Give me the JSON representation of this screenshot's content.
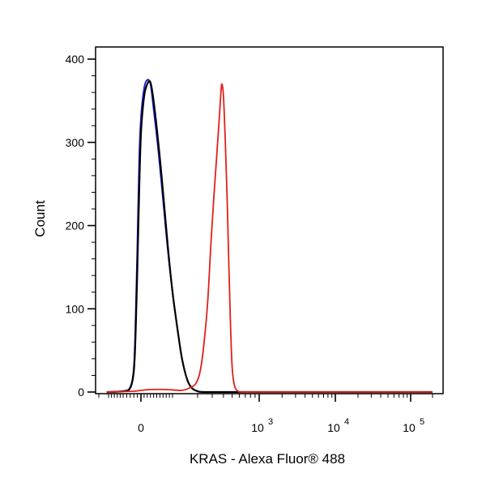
{
  "chart_data": {
    "type": "line",
    "title": "",
    "xlabel": "KRAS - Alexa Fluor® 488",
    "ylabel": "Count",
    "ylim": [
      0,
      400
    ],
    "yticks": [
      0,
      100,
      200,
      300,
      400
    ],
    "x_scale": "biexponential",
    "xticks": [
      {
        "value": 0,
        "base": "0",
        "exp": ""
      },
      {
        "value": 1000,
        "base": "10",
        "exp": "3"
      },
      {
        "value": 10000,
        "base": "10",
        "exp": "4"
      },
      {
        "value": 100000,
        "base": "10",
        "exp": "5"
      }
    ],
    "grid": false,
    "legend": "none",
    "series": [
      {
        "color": "#1a1adb",
        "points": [
          [
            -120,
            0
          ],
          [
            -50,
            1
          ],
          [
            -30,
            6
          ],
          [
            -20,
            30
          ],
          [
            -15,
            90
          ],
          [
            -10,
            180
          ],
          [
            -5,
            280
          ],
          [
            0,
            330
          ],
          [
            10,
            365
          ],
          [
            20,
            375
          ],
          [
            30,
            370
          ],
          [
            40,
            340
          ],
          [
            55,
            290
          ],
          [
            70,
            230
          ],
          [
            85,
            170
          ],
          [
            100,
            120
          ],
          [
            115,
            75
          ],
          [
            130,
            40
          ],
          [
            150,
            15
          ],
          [
            170,
            5
          ],
          [
            200,
            1
          ],
          [
            260,
            0
          ],
          [
            1000,
            0
          ],
          [
            10000,
            0
          ],
          [
            100000,
            0
          ],
          [
            200000,
            0
          ]
        ]
      },
      {
        "color": "#000000",
        "points": [
          [
            -120,
            0
          ],
          [
            -50,
            1
          ],
          [
            -30,
            5
          ],
          [
            -20,
            25
          ],
          [
            -15,
            70
          ],
          [
            -10,
            150
          ],
          [
            -5,
            240
          ],
          [
            0,
            310
          ],
          [
            10,
            355
          ],
          [
            20,
            370
          ],
          [
            30,
            372
          ],
          [
            40,
            350
          ],
          [
            55,
            300
          ],
          [
            70,
            240
          ],
          [
            85,
            175
          ],
          [
            100,
            120
          ],
          [
            115,
            75
          ],
          [
            130,
            40
          ],
          [
            150,
            15
          ],
          [
            170,
            5
          ],
          [
            200,
            1
          ],
          [
            260,
            0
          ],
          [
            1000,
            0
          ],
          [
            10000,
            0
          ],
          [
            100000,
            0
          ],
          [
            200000,
            0
          ]
        ]
      },
      {
        "color": "#e0201b",
        "points": [
          [
            -120,
            0
          ],
          [
            -20,
            1
          ],
          [
            0,
            2
          ],
          [
            30,
            3
          ],
          [
            80,
            3
          ],
          [
            130,
            2
          ],
          [
            160,
            5
          ],
          [
            190,
            10
          ],
          [
            215,
            25
          ],
          [
            240,
            60
          ],
          [
            265,
            110
          ],
          [
            290,
            180
          ],
          [
            315,
            240
          ],
          [
            340,
            290
          ],
          [
            360,
            330
          ],
          [
            375,
            360
          ],
          [
            385,
            370
          ],
          [
            400,
            355
          ],
          [
            420,
            300
          ],
          [
            440,
            230
          ],
          [
            460,
            150
          ],
          [
            480,
            80
          ],
          [
            500,
            30
          ],
          [
            530,
            8
          ],
          [
            580,
            1
          ],
          [
            650,
            0
          ],
          [
            1000,
            0
          ],
          [
            10000,
            0
          ],
          [
            100000,
            0
          ],
          [
            200000,
            0
          ]
        ]
      }
    ]
  }
}
